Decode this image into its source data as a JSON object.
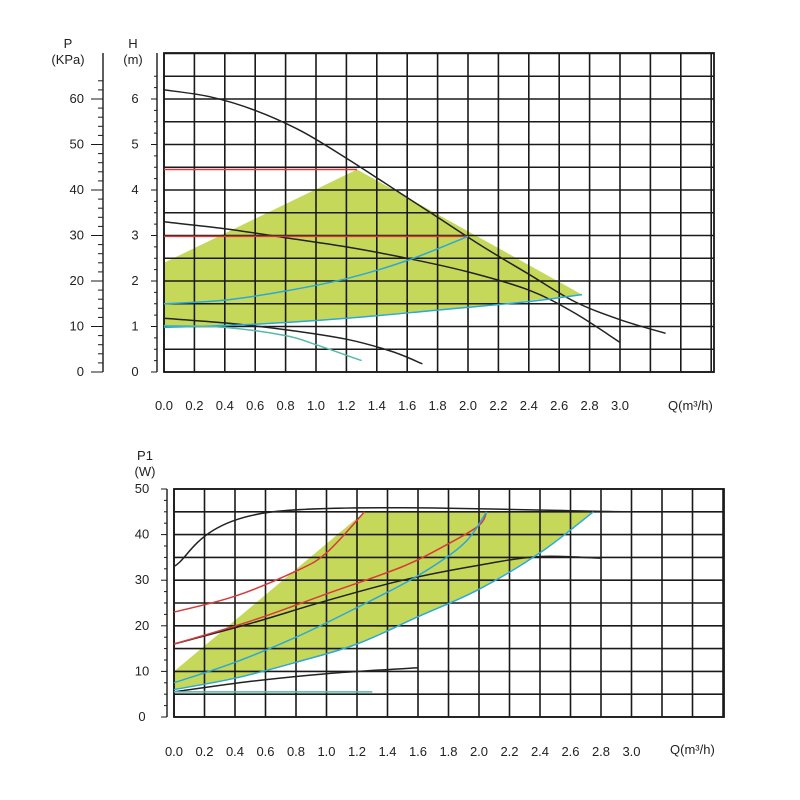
{
  "chart_data": [
    {
      "type": "line",
      "chart": "head",
      "xlabel": "Q(m³/h)",
      "ylabel": "H",
      "ylabel_unit": "(m)",
      "y2label": "P",
      "y2label_unit": "(KPa)",
      "xlim": [
        0,
        3.6
      ],
      "ylim": [
        0,
        6.5
      ],
      "y2lim": [
        0,
        65
      ],
      "grid": true,
      "x_ticks": [
        "0.0",
        "0.2",
        "0.4",
        "0.6",
        "0.8",
        "1.0",
        "1.2",
        "1.4",
        "1.6",
        "1.8",
        "2.0",
        "2.2",
        "2.4",
        "2.6",
        "2.8",
        "3.0"
      ],
      "y_ticks": [
        "0",
        "1",
        "2",
        "3",
        "4",
        "5",
        "6"
      ],
      "y2_ticks": [
        "0",
        "10",
        "20",
        "30",
        "40",
        "50",
        "60"
      ],
      "operating_area_color": "#c5d85a",
      "operating_area": [
        [
          0,
          2.4
        ],
        [
          1.27,
          4.45
        ],
        [
          2.75,
          1.7
        ],
        [
          2.0,
          1.42
        ],
        [
          1.2,
          1.18
        ],
        [
          0.6,
          1.05
        ],
        [
          0,
          1.0
        ]
      ],
      "series": [
        {
          "color": "#222222",
          "points": [
            [
              0,
              6.2
            ],
            [
              0.3,
              6.05
            ],
            [
              0.6,
              5.75
            ],
            [
              0.9,
              5.3
            ],
            [
              1.2,
              4.7
            ],
            [
              1.5,
              4.05
            ],
            [
              1.8,
              3.4
            ],
            [
              2.1,
              2.75
            ],
            [
              2.4,
              2.15
            ],
            [
              2.7,
              1.55
            ],
            [
              3.0,
              1.15
            ],
            [
              3.3,
              0.85
            ]
          ]
        },
        {
          "color": "#222222",
          "points": [
            [
              0,
              3.3
            ],
            [
              0.4,
              3.15
            ],
            [
              0.8,
              2.95
            ],
            [
              1.2,
              2.75
            ],
            [
              1.6,
              2.5
            ],
            [
              2.0,
              2.2
            ],
            [
              2.4,
              1.8
            ],
            [
              2.7,
              1.3
            ],
            [
              3.0,
              0.65
            ]
          ]
        },
        {
          "color": "#222222",
          "points": [
            [
              0,
              1.18
            ],
            [
              0.4,
              1.08
            ],
            [
              0.8,
              0.93
            ],
            [
              1.2,
              0.72
            ],
            [
              1.5,
              0.45
            ],
            [
              1.7,
              0.18
            ]
          ]
        },
        {
          "color": "#d83a3a",
          "points": [
            [
              0,
              4.45
            ],
            [
              1.27,
              4.45
            ]
          ]
        },
        {
          "color": "#d83a3a",
          "points": [
            [
              0,
              2.98
            ],
            [
              2.0,
              2.98
            ]
          ]
        },
        {
          "color": "#2aa8d8",
          "points": [
            [
              0,
              1.5
            ],
            [
              0.4,
              1.58
            ],
            [
              0.8,
              1.78
            ],
            [
              1.2,
              2.05
            ],
            [
              1.6,
              2.45
            ],
            [
              2.0,
              2.98
            ]
          ]
        },
        {
          "color": "#2aa8d8",
          "points": [
            [
              0,
              0.98
            ],
            [
              0.6,
              1.05
            ],
            [
              1.2,
              1.18
            ],
            [
              1.8,
              1.36
            ],
            [
              2.4,
              1.55
            ],
            [
              2.75,
              1.7
            ]
          ]
        },
        {
          "color": "#55b8a8",
          "points": [
            [
              0,
              1.02
            ],
            [
              0.4,
              0.98
            ],
            [
              0.8,
              0.8
            ],
            [
              1.0,
              0.6
            ],
            [
              1.3,
              0.25
            ]
          ]
        }
      ]
    },
    {
      "type": "line",
      "chart": "power",
      "xlabel": "Q(m³/h)",
      "ylabel": "P1",
      "ylabel_unit": "(W)",
      "xlim": [
        0,
        3.6
      ],
      "ylim": [
        0,
        50
      ],
      "grid": true,
      "x_ticks": [
        "0.0",
        "0.2",
        "0.4",
        "0.6",
        "0.8",
        "1.0",
        "1.2",
        "1.4",
        "1.6",
        "1.8",
        "2.0",
        "2.2",
        "2.4",
        "2.6",
        "2.8",
        "3.0"
      ],
      "y_ticks": [
        "0",
        "10",
        "20",
        "30",
        "40",
        "50"
      ],
      "operating_area_color": "#c5d85a",
      "operating_area": [
        [
          0,
          10
        ],
        [
          1.25,
          45
        ],
        [
          2.75,
          45
        ],
        [
          2.4,
          36
        ],
        [
          2.0,
          28
        ],
        [
          1.6,
          22
        ],
        [
          1.2,
          16
        ],
        [
          0.8,
          12
        ],
        [
          0.4,
          8.5
        ],
        [
          0,
          6
        ]
      ],
      "series": [
        {
          "color": "#222222",
          "points": [
            [
              0,
              33
            ],
            [
              0.65,
              45
            ],
            [
              3.0,
              45
            ]
          ]
        },
        {
          "color": "#222222",
          "points": [
            [
              0,
              16
            ],
            [
              0.5,
              20.5
            ],
            [
              1.0,
              25.5
            ],
            [
              1.5,
              30
            ],
            [
              2.0,
              33.3
            ],
            [
              2.4,
              35.2
            ],
            [
              2.8,
              34.8
            ]
          ]
        },
        {
          "color": "#222222",
          "points": [
            [
              0,
              5.5
            ],
            [
              0.5,
              7.8
            ],
            [
              1.0,
              9.5
            ],
            [
              1.6,
              10.8
            ]
          ]
        },
        {
          "color": "#d83a3a",
          "points": [
            [
              0,
              23
            ],
            [
              0.4,
              26.5
            ],
            [
              0.8,
              32
            ],
            [
              1.0,
              36
            ],
            [
              1.25,
              45
            ]
          ]
        },
        {
          "color": "#d83a3a",
          "points": [
            [
              0,
              16
            ],
            [
              0.5,
              21
            ],
            [
              1.0,
              27
            ],
            [
              1.5,
              33
            ],
            [
              1.8,
              38
            ],
            [
              2.0,
              42
            ],
            [
              2.05,
              45
            ]
          ]
        },
        {
          "color": "#2aa8d8",
          "points": [
            [
              0,
              7.5
            ],
            [
              0.4,
              12
            ],
            [
              0.8,
              17.5
            ],
            [
              1.2,
              24
            ],
            [
              1.6,
              31
            ],
            [
              1.9,
              38
            ],
            [
              2.05,
              45
            ]
          ]
        },
        {
          "color": "#2aa8d8",
          "points": [
            [
              0,
              6
            ],
            [
              0.4,
              8.5
            ],
            [
              0.8,
              12
            ],
            [
              1.2,
              16
            ],
            [
              1.6,
              22
            ],
            [
              2.0,
              28
            ],
            [
              2.4,
              36
            ],
            [
              2.75,
              45
            ]
          ]
        },
        {
          "color": "#55b8a8",
          "points": [
            [
              0,
              5.5
            ],
            [
              1.3,
              5.5
            ]
          ]
        }
      ]
    }
  ]
}
